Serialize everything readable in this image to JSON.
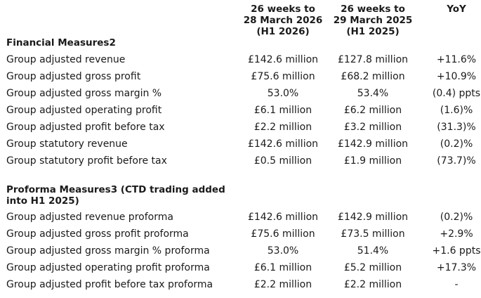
{
  "columns": {
    "h1_2026": "26 weeks to\n28 March 2026\n(H1 2026)",
    "h1_2025": "26 weeks to\n29 March 2025\n(H1 2025)",
    "yoy": "YoY"
  },
  "financial": {
    "title": "Financial Measures2",
    "rows": [
      {
        "label": "Group adjusted revenue",
        "h1_2026": "£142.6 million",
        "h1_2025": "£127.8 million",
        "yoy": "+11.6%"
      },
      {
        "label": "Group adjusted gross profit",
        "h1_2026": "£75.6 million",
        "h1_2025": "£68.2 million",
        "yoy": "+10.9%"
      },
      {
        "label": "Group adjusted gross margin %",
        "h1_2026": "53.0%",
        "h1_2025": "53.4%",
        "yoy": "(0.4) ppts"
      },
      {
        "label": "Group adjusted operating profit",
        "h1_2026": "£6.1 million",
        "h1_2025": "£6.2 million",
        "yoy": "(1.6)%"
      },
      {
        "label": "Group adjusted profit before tax",
        "h1_2026": "£2.2 million",
        "h1_2025": "£3.2 million",
        "yoy": "(31.3)%"
      },
      {
        "label": "Group statutory revenue",
        "h1_2026": "£142.6 million",
        "h1_2025": "£142.9 million",
        "yoy": "(0.2)%"
      },
      {
        "label": "Group statutory profit before tax",
        "h1_2026": "£0.5 million",
        "h1_2025": "£1.9 million",
        "yoy": "(73.7)%"
      }
    ]
  },
  "proforma": {
    "title": "Proforma Measures3 (CTD trading added into H1 2025)",
    "rows": [
      {
        "label": "Group adjusted revenue proforma",
        "h1_2026": "£142.6 million",
        "h1_2025": "£142.9 million",
        "yoy": "(0.2)%"
      },
      {
        "label": "Group adjusted gross profit proforma",
        "h1_2026": "£75.6 million",
        "h1_2025": "£73.5 million",
        "yoy": "+2.9%"
      },
      {
        "label": "Group adjusted gross margin % proforma",
        "h1_2026": "53.0%",
        "h1_2025": "51.4%",
        "yoy": "+1.6 ppts"
      },
      {
        "label": "Group adjusted operating profit proforma",
        "h1_2026": "£6.1 million",
        "h1_2025": "£5.2 million",
        "yoy": "+17.3%"
      },
      {
        "label": "Group adjusted profit before tax proforma",
        "h1_2026": "£2.2 million",
        "h1_2025": "£2.2 million",
        "yoy": "-"
      }
    ]
  }
}
